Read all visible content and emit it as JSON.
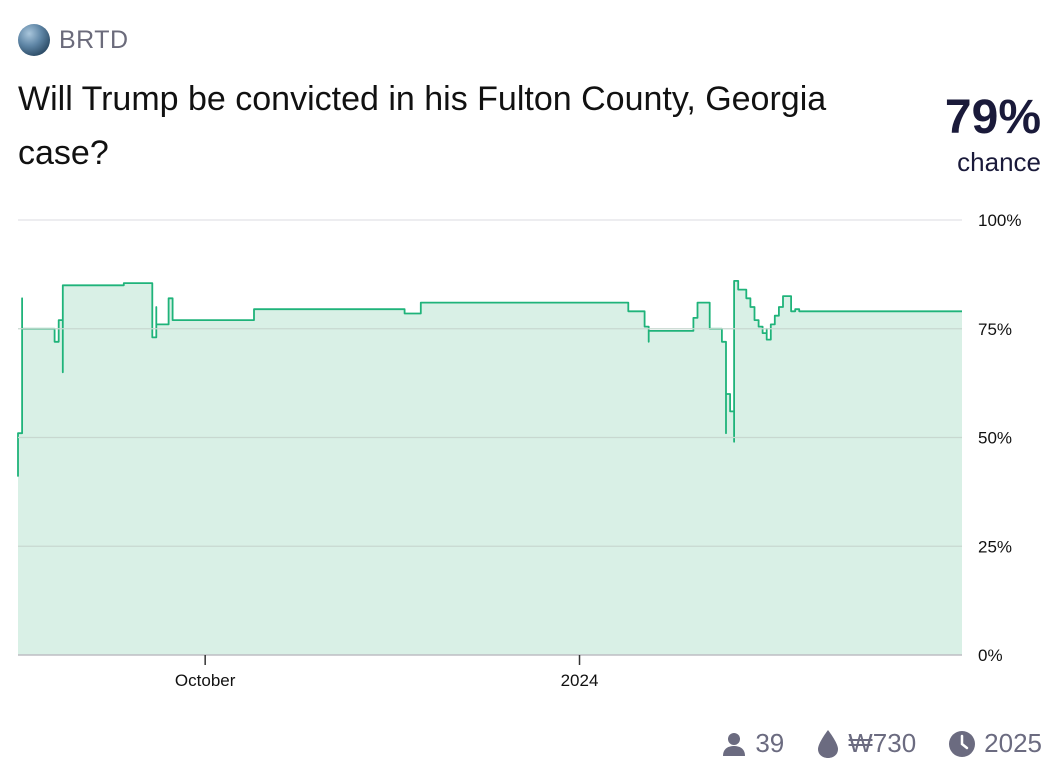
{
  "creator": {
    "name": "BRTD",
    "avatar_icon": "globe-avatar-icon"
  },
  "question": "Will Trump be convicted in his Fulton County, Georgia case?",
  "probability": {
    "value": "79%",
    "label": "chance"
  },
  "colors": {
    "line": "#1fb37a",
    "fill": "#d9f0e6",
    "grid": "#c8d8d0",
    "text": "#111111",
    "accent": "#1a1a3a"
  },
  "stats": {
    "traders": {
      "icon": "user-icon",
      "value": "39"
    },
    "volume": {
      "icon": "droplet-icon",
      "value": "₩730"
    },
    "close": {
      "icon": "clock-icon",
      "value": "2025"
    }
  },
  "chart_data": {
    "type": "area",
    "title": "",
    "xlabel": "",
    "ylabel": "",
    "ylim": [
      0,
      100
    ],
    "grid": true,
    "x_ticks": [
      {
        "label": "October",
        "date": "2023-10-01"
      },
      {
        "label": "2024",
        "date": "2024-01-01"
      }
    ],
    "y_ticks": [
      {
        "label": "100%",
        "value": 100
      },
      {
        "label": "75%",
        "value": 75
      },
      {
        "label": "50%",
        "value": 50
      },
      {
        "label": "25%",
        "value": 25
      },
      {
        "label": "0%",
        "value": 0
      }
    ],
    "xlim": [
      "2023-08-16",
      "2024-04-04"
    ],
    "series": [
      {
        "step": true,
        "points": [
          [
            "2023-08-16",
            41
          ],
          [
            "2023-08-16",
            51
          ],
          [
            "2023-08-17",
            82
          ],
          [
            "2023-08-17",
            75
          ],
          [
            "2023-08-25",
            75
          ],
          [
            "2023-08-25",
            72
          ],
          [
            "2023-08-26",
            77
          ],
          [
            "2023-08-27",
            75
          ],
          [
            "2023-08-27",
            65
          ],
          [
            "2023-08-27",
            85
          ],
          [
            "2023-09-11",
            85
          ],
          [
            "2023-09-11",
            85.5
          ],
          [
            "2023-09-18",
            85.5
          ],
          [
            "2023-09-18",
            73
          ],
          [
            "2023-09-19",
            80
          ],
          [
            "2023-09-19",
            76
          ],
          [
            "2023-09-22",
            76
          ],
          [
            "2023-09-22",
            82
          ],
          [
            "2023-09-23",
            77
          ],
          [
            "2023-10-13",
            77
          ],
          [
            "2023-10-13",
            79.5
          ],
          [
            "2023-11-19",
            79.5
          ],
          [
            "2023-11-19",
            78.5
          ],
          [
            "2023-11-23",
            78.5
          ],
          [
            "2023-11-23",
            81
          ],
          [
            "2024-01-13",
            81
          ],
          [
            "2024-01-13",
            79
          ],
          [
            "2024-01-17",
            79
          ],
          [
            "2024-01-17",
            75.5
          ],
          [
            "2024-01-18",
            72
          ],
          [
            "2024-01-18",
            74.5
          ],
          [
            "2024-01-29",
            74.5
          ],
          [
            "2024-01-29",
            77.5
          ],
          [
            "2024-01-30",
            81
          ],
          [
            "2024-02-02",
            81
          ],
          [
            "2024-02-02",
            77
          ],
          [
            "2024-02-02",
            75
          ],
          [
            "2024-02-05",
            75
          ],
          [
            "2024-02-05",
            72
          ],
          [
            "2024-02-06",
            51
          ],
          [
            "2024-02-06",
            66
          ],
          [
            "2024-02-06",
            55
          ],
          [
            "2024-02-06",
            60
          ],
          [
            "2024-02-07",
            58
          ],
          [
            "2024-02-07",
            56
          ],
          [
            "2024-02-08",
            49
          ],
          [
            "2024-02-08",
            86
          ],
          [
            "2024-02-09",
            84
          ],
          [
            "2024-02-11",
            84
          ],
          [
            "2024-02-11",
            82
          ],
          [
            "2024-02-12",
            80
          ],
          [
            "2024-02-13",
            79
          ],
          [
            "2024-02-13",
            77
          ],
          [
            "2024-02-14",
            75.5
          ],
          [
            "2024-02-15",
            74
          ],
          [
            "2024-02-16",
            75
          ],
          [
            "2024-02-16",
            72.5
          ],
          [
            "2024-02-17",
            76
          ],
          [
            "2024-02-18",
            78
          ],
          [
            "2024-02-19",
            80
          ],
          [
            "2024-02-20",
            82.5
          ],
          [
            "2024-02-22",
            82.5
          ],
          [
            "2024-02-22",
            79
          ],
          [
            "2024-02-23",
            79.5
          ],
          [
            "2024-02-24",
            79
          ],
          [
            "2024-02-25",
            79
          ]
        ]
      }
    ]
  }
}
